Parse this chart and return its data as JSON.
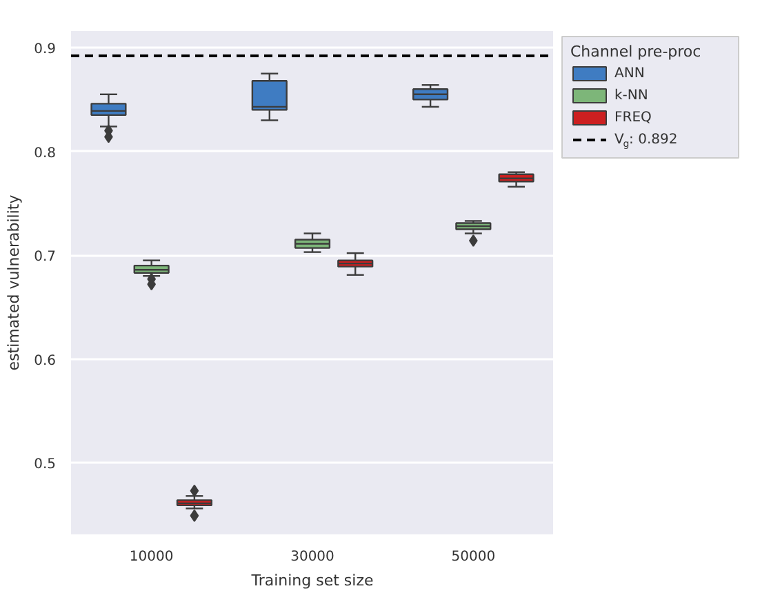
{
  "chart_data": {
    "type": "box",
    "xlabel": "Training set size",
    "ylabel": "estimated vulnerability",
    "legend_title": "Channel pre-proc",
    "categories": [
      "10000",
      "30000",
      "50000"
    ],
    "ylim": [
      0.431,
      0.916
    ],
    "yticks": [
      0.5,
      0.6,
      0.7,
      0.8,
      0.9
    ],
    "grid": "y",
    "legend": "top right",
    "marker": "diamond",
    "series": [
      {
        "name": "ANN",
        "color": "#3f7cc2",
        "boxes": [
          {
            "low": 0.824,
            "q1": 0.835,
            "median": 0.839,
            "q3": 0.846,
            "high": 0.855,
            "outliers": [
              0.82,
              0.814
            ]
          },
          {
            "low": 0.83,
            "q1": 0.84,
            "median": 0.843,
            "q3": 0.868,
            "high": 0.875
          },
          {
            "low": 0.843,
            "q1": 0.85,
            "median": 0.855,
            "q3": 0.86,
            "high": 0.864
          }
        ]
      },
      {
        "name": "k-NN",
        "color": "#7db679",
        "boxes": [
          {
            "low": 0.68,
            "q1": 0.683,
            "median": 0.686,
            "q3": 0.69,
            "high": 0.695,
            "outliers": [
              0.677,
              0.672
            ]
          },
          {
            "low": 0.703,
            "q1": 0.707,
            "median": 0.711,
            "q3": 0.715,
            "high": 0.721
          },
          {
            "low": 0.721,
            "q1": 0.725,
            "median": 0.728,
            "q3": 0.731,
            "high": 0.733,
            "outliers": [
              0.714
            ]
          }
        ]
      },
      {
        "name": "FREQ",
        "color": "#cc1f20",
        "boxes": [
          {
            "low": 0.456,
            "q1": 0.459,
            "median": 0.461,
            "q3": 0.464,
            "high": 0.468,
            "outliers": [
              0.473,
              0.449
            ]
          },
          {
            "low": 0.681,
            "q1": 0.689,
            "median": 0.692,
            "q3": 0.695,
            "high": 0.702
          },
          {
            "low": 0.766,
            "q1": 0.771,
            "median": 0.774,
            "q3": 0.778,
            "high": 0.78
          }
        ]
      }
    ],
    "ref_lines": [
      {
        "axis": "y",
        "value": 0.892,
        "label": "V$_{g}$: 0.892",
        "color": "#000000",
        "line_style": "dashed"
      }
    ]
  }
}
